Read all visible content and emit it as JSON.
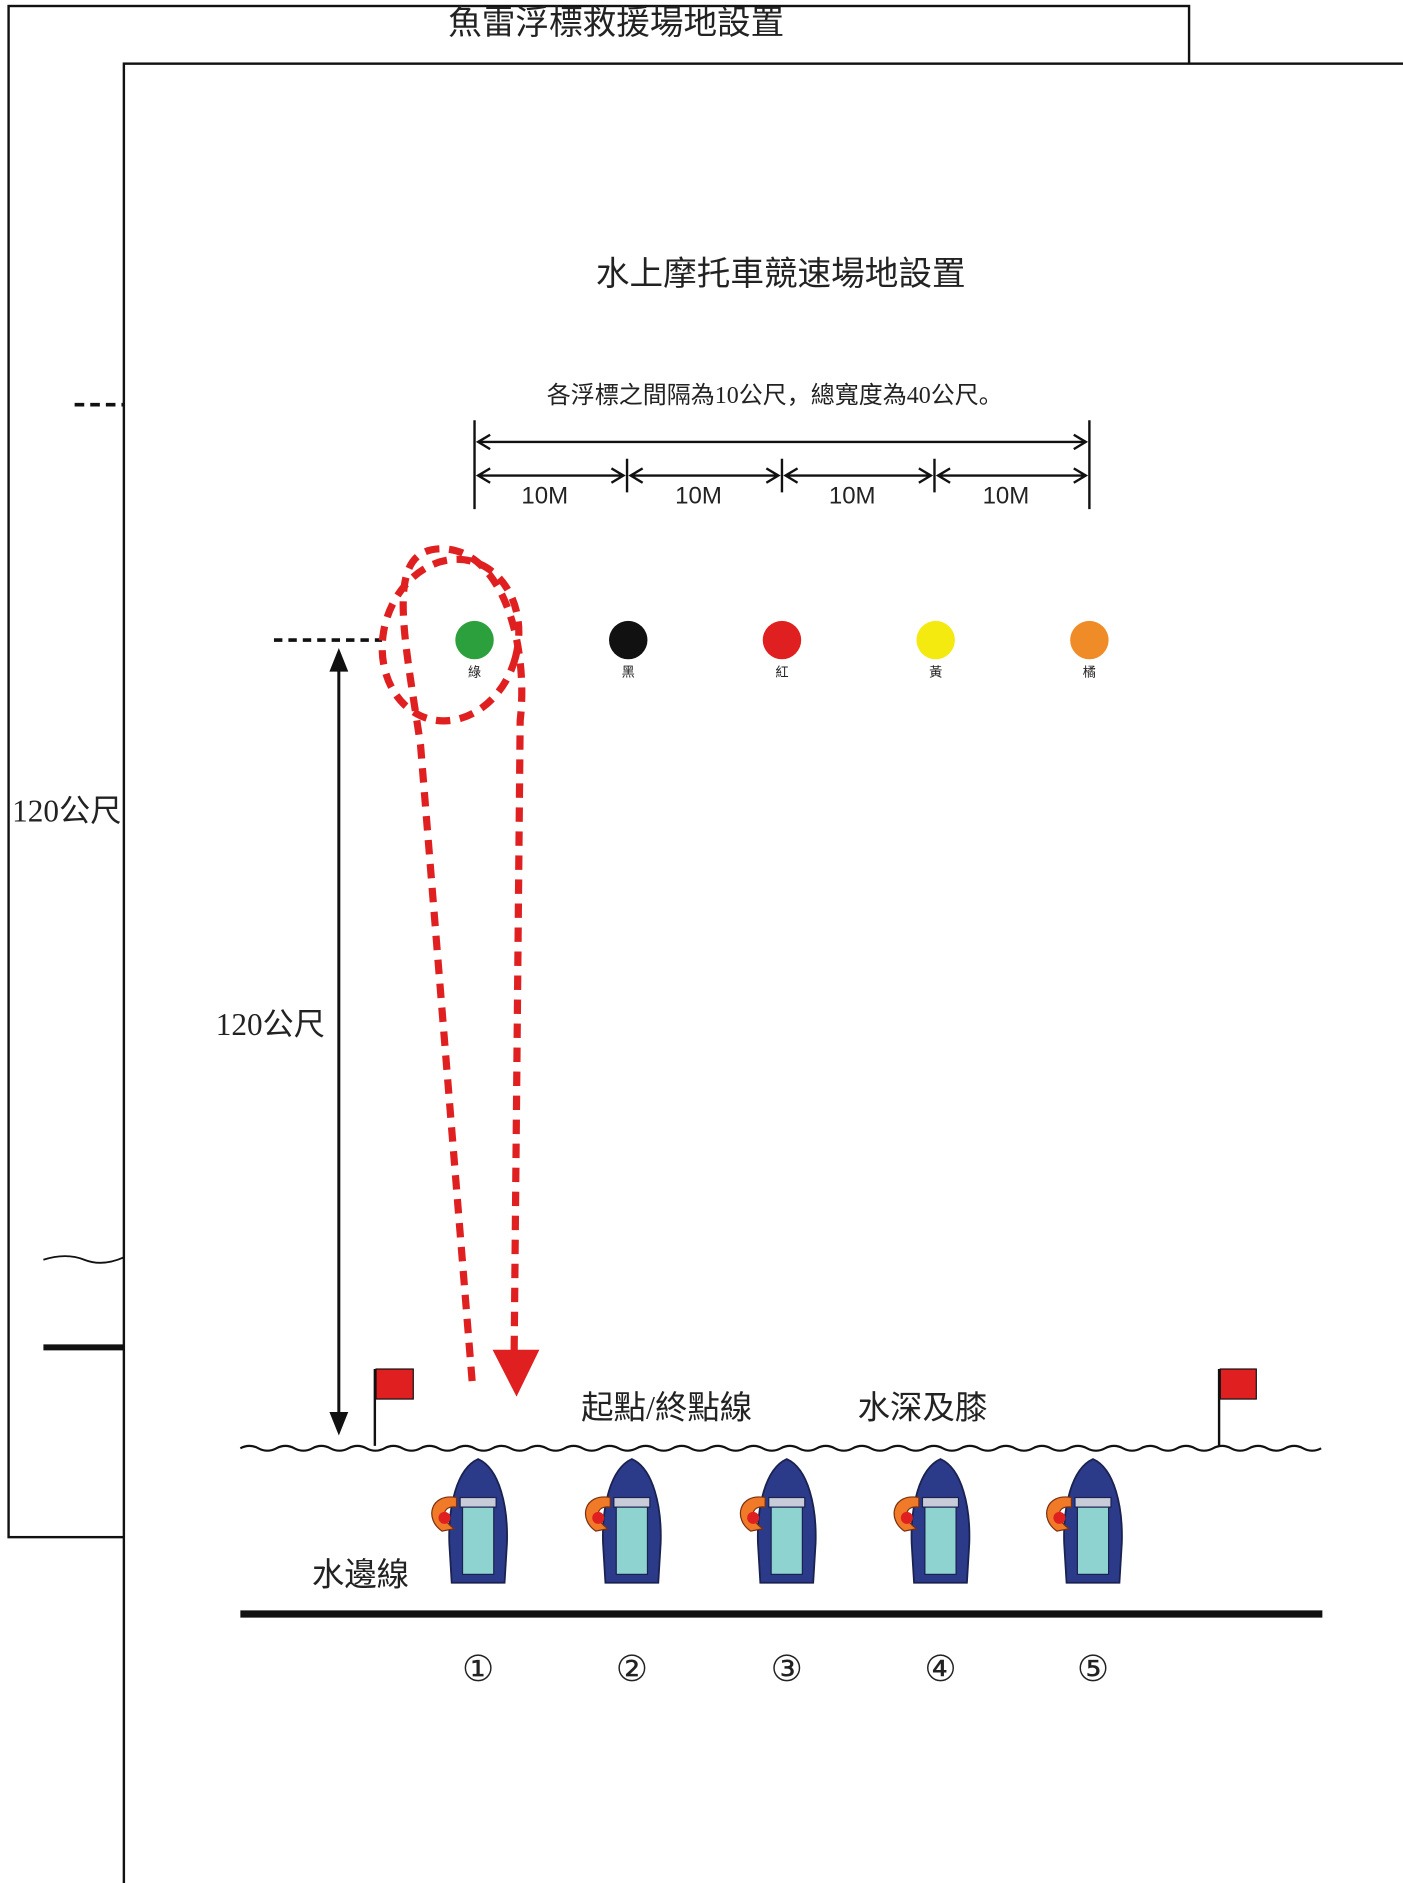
{
  "back": {
    "title": "魚雷浮標救援場地設置",
    "distance_label": "120公尺"
  },
  "front": {
    "title": "水上摩托車競速場地設置",
    "spacing_note": "各浮標之間隔為10公尺，總寬度為40公尺。",
    "segments": [
      "10M",
      "10M",
      "10M",
      "10M"
    ],
    "buoys": [
      {
        "label": "綠",
        "color": "#2ca03c"
      },
      {
        "label": "黑",
        "color": "#111111"
      },
      {
        "label": "紅",
        "color": "#e02020"
      },
      {
        "label": "黃",
        "color": "#f5ea10"
      },
      {
        "label": "橘",
        "color": "#f08c28"
      }
    ],
    "distance_label": "120公尺",
    "start_line_label": "起點/終點線",
    "depth_label": "水深及膝",
    "shore_label": "水邊線",
    "lanes": [
      "①",
      "②",
      "③",
      "④",
      "⑤"
    ]
  }
}
